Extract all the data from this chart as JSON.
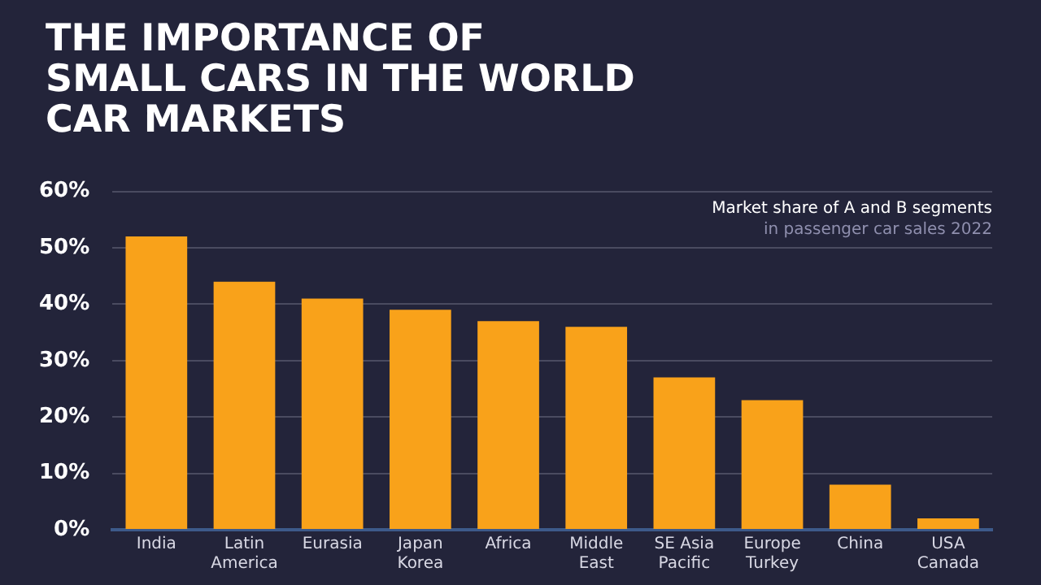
{
  "chart_data": {
    "type": "bar",
    "title": "THE IMPORTANCE OF\nSMALL CARS IN THE WORLD\nCAR MARKETS",
    "subtitle": "Market share of A and B segments\nin passenger car sales 2022",
    "categories": [
      "India",
      "Latin\nAmerica",
      "Eurasia",
      "Japan\nKorea",
      "Africa",
      "Middle\nEast",
      "SE Asia\nPacific",
      "Europe\nTurkey",
      "China",
      "USA\nCanada"
    ],
    "values": [
      52,
      44,
      41,
      39,
      37,
      36,
      27,
      23,
      8,
      2
    ],
    "color": "#f9a21a",
    "ylim": [
      0,
      60
    ],
    "yticks": [
      {
        "value": 0,
        "label": "0%"
      },
      {
        "value": 10,
        "label": "10%"
      },
      {
        "value": 20,
        "label": "20%"
      },
      {
        "value": 30,
        "label": "30%"
      },
      {
        "value": 40,
        "label": "40%"
      },
      {
        "value": 50,
        "label": "50%"
      },
      {
        "value": 60,
        "label": "60%"
      }
    ],
    "grid": "y"
  }
}
